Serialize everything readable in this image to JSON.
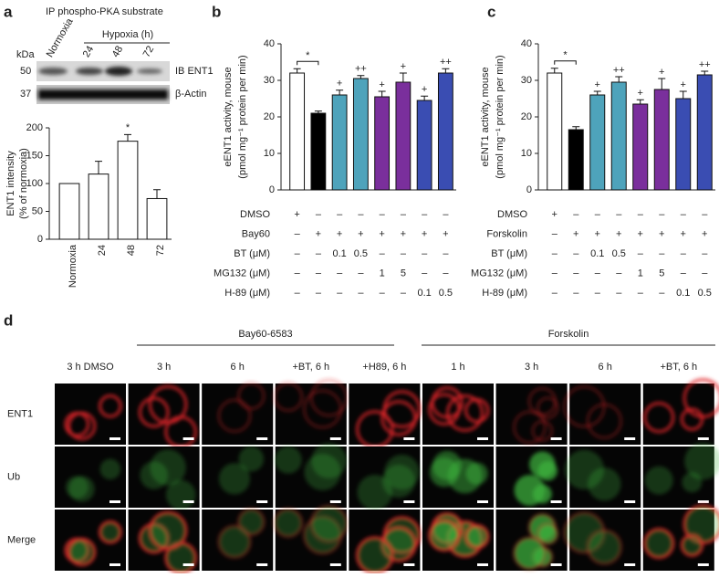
{
  "panels": [
    "a",
    "b",
    "c",
    "d"
  ],
  "blot": {
    "title": "IP phospho-PKA substrate",
    "kda_label": "kDa",
    "markers": [
      "50",
      "37"
    ],
    "lanes": [
      "Normoxia",
      "24",
      "48",
      "72"
    ],
    "group_label": "Hypoxia (h)",
    "rows": [
      "IB ENT1",
      "β-Actin"
    ]
  },
  "chart_data": [
    {
      "type": "bar",
      "ylabel": [
        "ENT1 intensity",
        "(% of normoxia)"
      ],
      "categories": [
        "Normoxia",
        "24",
        "48",
        "72"
      ],
      "values": [
        100,
        117,
        176,
        73
      ],
      "errors": [
        null,
        23,
        12,
        16
      ],
      "annotations": [
        null,
        null,
        "*",
        null
      ],
      "colors": [
        "#ffffff",
        "#ffffff",
        "#ffffff",
        "#ffffff"
      ],
      "ylim": [
        0,
        200
      ],
      "yticks": [
        0,
        50,
        100,
        150,
        200
      ]
    },
    {
      "type": "bar",
      "ylabel": [
        "eENT1 activity, mouse",
        "(pmol mg⁻¹ protein per min)"
      ],
      "values": [
        32,
        21,
        26,
        30.5,
        25.5,
        29.5,
        24.5,
        32
      ],
      "errors": [
        1.2,
        0.6,
        1.3,
        0.8,
        1.5,
        2.5,
        1.2,
        1.2
      ],
      "annotations": [
        null,
        null,
        "+",
        "++",
        "+",
        "+",
        "+",
        "++"
      ],
      "bracket_label": "*",
      "colors": [
        "#ffffff",
        "#000000",
        "#4ea3bb",
        "#4ea3bb",
        "#7a2f9c",
        "#7a2f9c",
        "#3a4db2",
        "#3a4db2"
      ],
      "ylim": [
        0,
        40
      ],
      "yticks": [
        0,
        10,
        20,
        30,
        40
      ],
      "treatments": [
        {
          "name": "DMSO",
          "labels": [
            "+",
            "–",
            "–",
            "–",
            "–",
            "–",
            "–",
            "–"
          ]
        },
        {
          "name": "Bay60",
          "labels": [
            "–",
            "+",
            "+",
            "+",
            "+",
            "+",
            "+",
            "+"
          ]
        },
        {
          "name": "BT (μM)",
          "labels": [
            "–",
            "–",
            "0.1",
            "0.5",
            "–",
            "–",
            "–",
            "–"
          ]
        },
        {
          "name": "MG132 (μM)",
          "labels": [
            "–",
            "–",
            "–",
            "–",
            "1",
            "5",
            "–",
            "–"
          ]
        },
        {
          "name": "H-89 (μM)",
          "labels": [
            "–",
            "–",
            "–",
            "–",
            "–",
            "–",
            "0.1",
            "0.5"
          ]
        }
      ]
    },
    {
      "type": "bar",
      "ylabel": [
        "eENT1 activity, mouse",
        "(pmol mg⁻¹ protein per min)"
      ],
      "values": [
        32,
        16.5,
        26,
        29.5,
        23.5,
        27.5,
        25,
        31.5
      ],
      "errors": [
        1.3,
        0.8,
        1,
        1.5,
        1.2,
        3,
        2,
        1
      ],
      "annotations": [
        null,
        null,
        "+",
        "++",
        "+",
        "+",
        "+",
        "++"
      ],
      "bracket_label": "*",
      "colors": [
        "#ffffff",
        "#000000",
        "#4ea3bb",
        "#4ea3bb",
        "#7a2f9c",
        "#7a2f9c",
        "#3a4db2",
        "#3a4db2"
      ],
      "ylim": [
        0,
        40
      ],
      "yticks": [
        0,
        10,
        20,
        30,
        40
      ],
      "treatments": [
        {
          "name": "DMSO",
          "labels": [
            "+",
            "–",
            "–",
            "–",
            "–",
            "–",
            "–",
            "–"
          ]
        },
        {
          "name": "Forskolin",
          "labels": [
            "–",
            "+",
            "+",
            "+",
            "+",
            "+",
            "+",
            "+"
          ]
        },
        {
          "name": "BT (μM)",
          "labels": [
            "–",
            "–",
            "0.1",
            "0.5",
            "–",
            "–",
            "–",
            "–"
          ]
        },
        {
          "name": "MG132 (μM)",
          "labels": [
            "–",
            "–",
            "–",
            "–",
            "1",
            "5",
            "–",
            "–"
          ]
        },
        {
          "name": "H-89 (μM)",
          "labels": [
            "–",
            "–",
            "–",
            "–",
            "–",
            "–",
            "0.1",
            "0.5"
          ]
        }
      ]
    }
  ],
  "microscopy": {
    "groups": [
      "Bay60-6583",
      "Forskolin"
    ],
    "columns": [
      "3 h DMSO",
      "3 h",
      "6 h",
      "+BT, 6 h",
      "+H89, 6 h",
      "1 h",
      "3 h",
      "6 h",
      "+BT, 6 h"
    ],
    "rows": [
      "ENT1",
      "Ub",
      "Merge"
    ]
  }
}
